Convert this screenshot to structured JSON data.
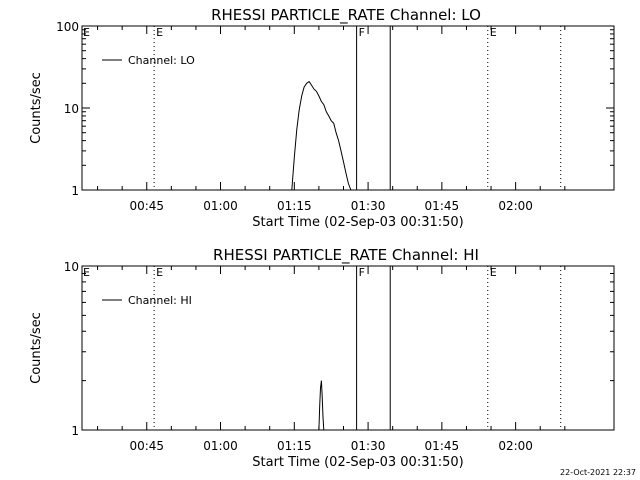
{
  "chart_data": [
    {
      "type": "line",
      "title": "RHESSI PARTICLE_RATE Channel: LO",
      "xlabel": "Start Time (02-Sep-03 00:31:50)",
      "ylabel": "Counts/sec",
      "y_scale": "log",
      "ylim": [
        1,
        100
      ],
      "y_ticks": [
        {
          "value": 1,
          "label": "1"
        },
        {
          "value": 10,
          "label": "10"
        },
        {
          "value": 100,
          "label": "100"
        }
      ],
      "xlim": [
        "00:31:50",
        "02:20:00"
      ],
      "x_ticks": [
        {
          "value": "00:45",
          "label": "00:45"
        },
        {
          "value": "01:00",
          "label": "01:00"
        },
        {
          "value": "01:15",
          "label": "01:15"
        },
        {
          "value": "01:30",
          "label": "01:30"
        },
        {
          "value": "01:45",
          "label": "01:45"
        },
        {
          "value": "02:00",
          "label": "02:00"
        }
      ],
      "legend": {
        "position": "top-left",
        "entries": [
          "Channel: LO"
        ]
      },
      "series": [
        {
          "name": "Channel: LO",
          "x": [
            "01:14:30",
            "01:15:00",
            "01:15:30",
            "01:16:00",
            "01:16:30",
            "01:17:00",
            "01:17:30",
            "01:18:00",
            "01:18:30",
            "01:19:00",
            "01:19:30",
            "01:20:00",
            "01:20:30",
            "01:21:00",
            "01:21:30",
            "01:22:00",
            "01:22:30",
            "01:23:00",
            "01:23:30",
            "01:24:00",
            "01:24:30",
            "01:25:00",
            "01:25:30",
            "01:26:00",
            "01:26:30"
          ],
          "y": [
            1.0,
            2.5,
            5.5,
            9.5,
            14.0,
            18.0,
            20.0,
            21.0,
            19.0,
            17.0,
            16.0,
            14.0,
            12.0,
            11.0,
            9.0,
            8.0,
            7.0,
            6.5,
            5.0,
            4.0,
            3.0,
            2.2,
            1.6,
            1.2,
            1.0
          ]
        }
      ],
      "markers": [
        {
          "type": "dotted",
          "time": "00:46:30",
          "label": "E"
        },
        {
          "type": "solid",
          "time": "01:27:40",
          "label": "F"
        },
        {
          "type": "solid",
          "time": "01:34:30",
          "label": ""
        },
        {
          "type": "dotted",
          "time": "01:54:20",
          "label": "E"
        },
        {
          "type": "dotted",
          "time": "02:09:10",
          "label": ""
        }
      ]
    },
    {
      "type": "line",
      "title": "RHESSI PARTICLE_RATE Channel: HI",
      "xlabel": "Start Time (02-Sep-03 00:31:50)",
      "ylabel": "Counts/sec",
      "y_scale": "log",
      "ylim": [
        1,
        10
      ],
      "y_ticks": [
        {
          "value": 1,
          "label": "1"
        },
        {
          "value": 10,
          "label": "10"
        }
      ],
      "xlim": [
        "00:31:50",
        "02:20:00"
      ],
      "x_ticks": [
        {
          "value": "00:45",
          "label": "00:45"
        },
        {
          "value": "01:00",
          "label": "01:00"
        },
        {
          "value": "01:15",
          "label": "01:15"
        },
        {
          "value": "01:30",
          "label": "01:30"
        },
        {
          "value": "01:45",
          "label": "01:45"
        },
        {
          "value": "02:00",
          "label": "02:00"
        }
      ],
      "legend": {
        "position": "top-left",
        "entries": [
          "Channel: HI"
        ]
      },
      "series": [
        {
          "name": "Channel: HI",
          "x": [
            "01:20:00",
            "01:20:10",
            "01:20:20",
            "01:20:30",
            "01:20:40",
            "01:20:50",
            "01:21:00"
          ],
          "y": [
            1.0,
            1.4,
            1.8,
            2.0,
            1.6,
            1.2,
            1.0
          ]
        }
      ],
      "markers": [
        {
          "type": "dotted",
          "time": "00:46:30",
          "label": "E"
        },
        {
          "type": "solid",
          "time": "01:27:40",
          "label": "F"
        },
        {
          "type": "solid",
          "time": "01:34:30",
          "label": ""
        },
        {
          "type": "dotted",
          "time": "01:54:20",
          "label": "E"
        },
        {
          "type": "dotted",
          "time": "02:09:10",
          "label": ""
        }
      ]
    }
  ],
  "footer": {
    "timestamp": "22-Oct-2021 22:37"
  }
}
